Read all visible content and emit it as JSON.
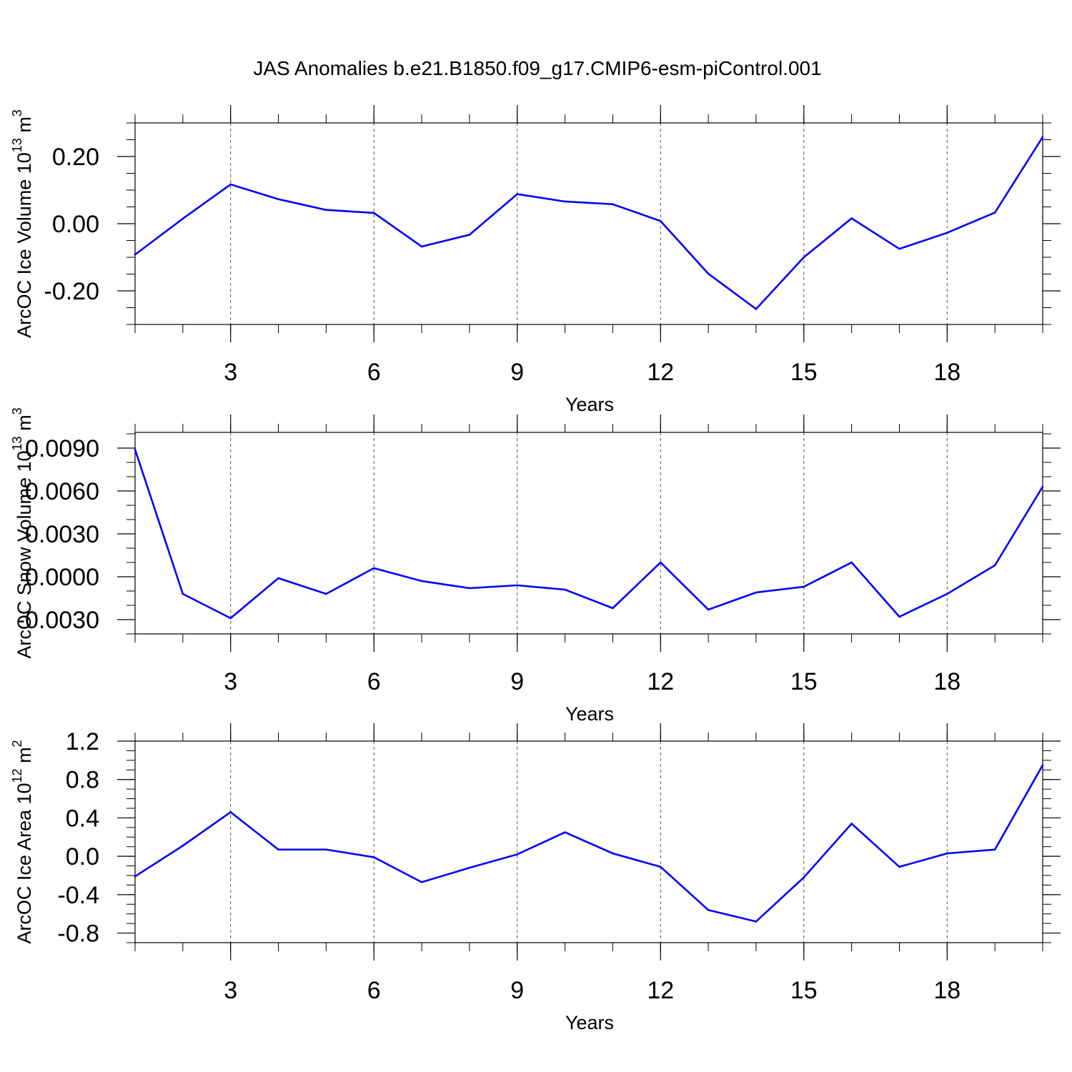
{
  "figure": {
    "title": "JAS Anomalies b.e21.B1850.f09_g17.CMIP6-esm-piControl.001"
  },
  "chart_data": [
    {
      "type": "line",
      "title": "JAS Anomalies b.e21.B1850.f09_g17.CMIP6-esm-piControl.001",
      "xlabel": "Years",
      "ylabel": {
        "base": "ArcOC Ice Volume 10",
        "exp": "13",
        "unit": " m",
        "unit_exp": "3"
      },
      "xlim": [
        1,
        20
      ],
      "ylim": [
        -0.3,
        0.3
      ],
      "x_ticks": [
        3,
        6,
        9,
        12,
        15,
        18
      ],
      "x_tick_labels": [
        "3",
        "6",
        "9",
        "12",
        "15",
        "18"
      ],
      "y_ticks": [
        -0.2,
        0.0,
        0.2
      ],
      "y_tick_labels": [
        "-0.20",
        "0.00",
        "0.20"
      ],
      "y_minor_step": 0.05,
      "grid": "vertical dashed at major x ticks",
      "series": [
        {
          "name": "ArcOC Ice Volume",
          "color": "#0000ff",
          "x": [
            1,
            2,
            3,
            4,
            5,
            6,
            7,
            8,
            9,
            10,
            11,
            12,
            13,
            14,
            15,
            16,
            17,
            18,
            19,
            20
          ],
          "values": [
            -0.092,
            0.015,
            0.117,
            0.073,
            0.041,
            0.032,
            -0.068,
            -0.033,
            0.088,
            0.066,
            0.058,
            0.008,
            -0.149,
            -0.254,
            -0.1,
            0.016,
            -0.075,
            -0.027,
            0.033,
            0.258
          ]
        }
      ]
    },
    {
      "type": "line",
      "xlabel": "Years",
      "ylabel": {
        "base": "ArcOC Snow Volume 10",
        "exp": "13",
        "unit": " m",
        "unit_exp": "3"
      },
      "xlim": [
        1,
        20
      ],
      "ylim": [
        -0.004,
        0.0101
      ],
      "x_ticks": [
        3,
        6,
        9,
        12,
        15,
        18
      ],
      "x_tick_labels": [
        "3",
        "6",
        "9",
        "12",
        "15",
        "18"
      ],
      "y_ticks": [
        -0.003,
        0.0,
        0.003,
        0.006,
        0.009
      ],
      "y_tick_labels": [
        "-0.0030",
        "0.0000",
        "0.0030",
        "0.0060",
        "0.0090"
      ],
      "y_minor_step": 0.001,
      "grid": "vertical dashed at major x ticks",
      "series": [
        {
          "name": "ArcOC Snow Volume",
          "color": "#0000ff",
          "x": [
            1,
            2,
            3,
            4,
            5,
            6,
            7,
            8,
            9,
            10,
            11,
            12,
            13,
            14,
            15,
            16,
            17,
            18,
            19,
            20
          ],
          "values": [
            0.0089,
            -0.0012,
            -0.0029,
            -0.0001,
            -0.0012,
            0.0006,
            -0.0003,
            -0.0008,
            -0.0006,
            -0.0009,
            -0.0022,
            0.001,
            -0.0023,
            -0.0011,
            -0.0007,
            0.001,
            -0.0028,
            -0.0012,
            0.0008,
            0.0063
          ]
        }
      ]
    },
    {
      "type": "line",
      "xlabel": "Years",
      "ylabel": {
        "base": "ArcOC Ice Area 10",
        "exp": "12",
        "unit": " m",
        "unit_exp": "2"
      },
      "xlim": [
        1,
        20
      ],
      "ylim": [
        -0.9,
        1.2
      ],
      "x_ticks": [
        3,
        6,
        9,
        12,
        15,
        18
      ],
      "x_tick_labels": [
        "3",
        "6",
        "9",
        "12",
        "15",
        "18"
      ],
      "y_ticks": [
        -0.8,
        -0.4,
        0.0,
        0.4,
        0.8,
        1.2
      ],
      "y_tick_labels": [
        "-0.8",
        "-0.4",
        "0.0",
        "0.4",
        "0.8",
        "1.2"
      ],
      "y_minor_step": 0.1,
      "grid": "vertical dashed at major x ticks",
      "series": [
        {
          "name": "ArcOC Ice Area",
          "color": "#0000ff",
          "x": [
            1,
            2,
            3,
            4,
            5,
            6,
            7,
            8,
            9,
            10,
            11,
            12,
            13,
            14,
            15,
            16,
            17,
            18,
            19,
            20
          ],
          "values": [
            -0.21,
            0.11,
            0.46,
            0.07,
            0.07,
            -0.01,
            -0.27,
            -0.12,
            0.02,
            0.25,
            0.03,
            -0.11,
            -0.56,
            -0.68,
            -0.22,
            0.34,
            -0.11,
            0.03,
            0.07,
            0.95
          ]
        }
      ]
    }
  ]
}
